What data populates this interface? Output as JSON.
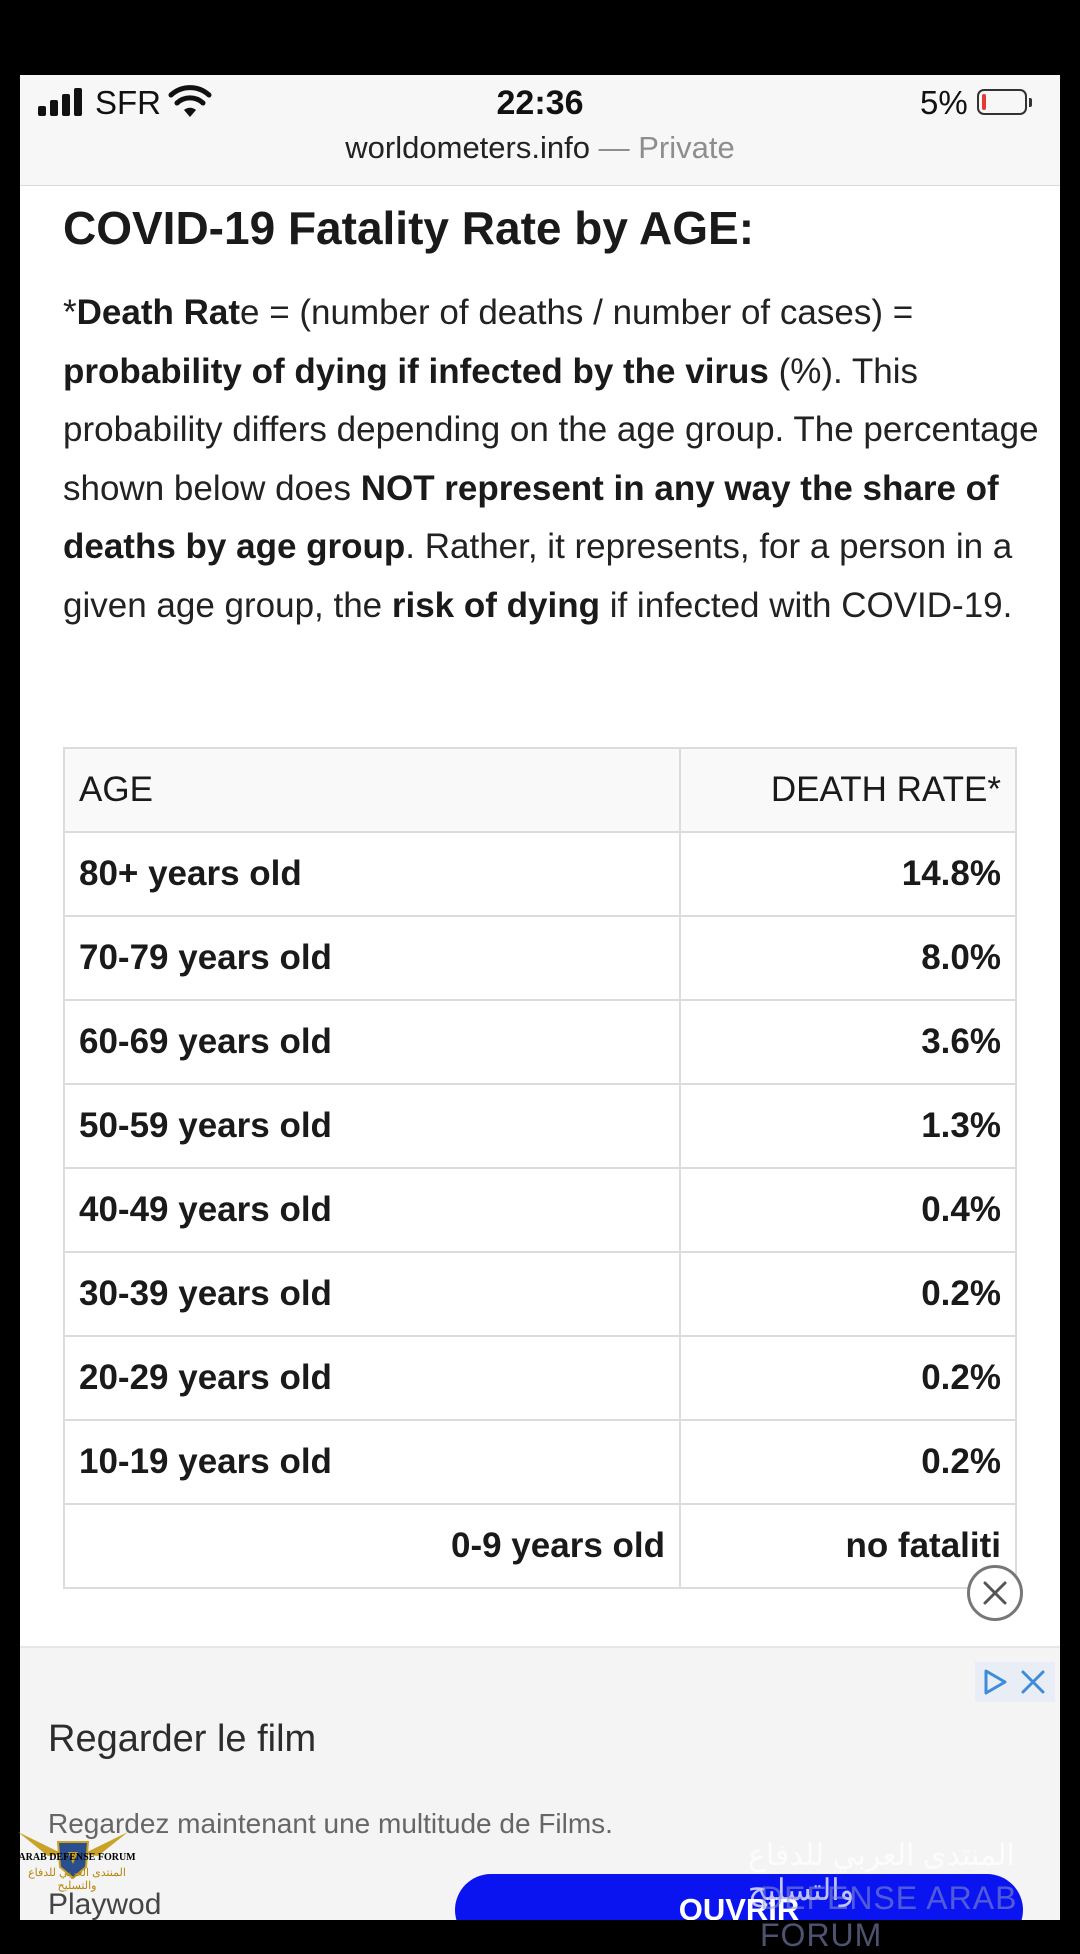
{
  "status": {
    "carrier": "SFR",
    "time": "22:36",
    "battery": "5%",
    "battery_level": 0.05
  },
  "browser": {
    "domain": "worldometers.info",
    "separator": "—",
    "mode": "Private"
  },
  "article": {
    "title": "COVID-19 Fatality Rate by AGE:",
    "desc": {
      "p1": "*",
      "p2": "Death Rat",
      "p3": "e = (number of deaths / number of cases) = ",
      "p4": "probability of dying if infected by the virus",
      "p5": " (%). This probability differs depending on the age group. The percentage shown below does ",
      "p6": "NOT represent in any way the share of deaths by age group",
      "p7": ". Rather, it represents, for a person in a given age group, the ",
      "p8": "risk of dying",
      "p9": " if infected with COVID-19."
    }
  },
  "table": {
    "header": {
      "age": "AGE",
      "rate": "DEATH RATE*"
    },
    "rows": [
      {
        "age": "80+ years old",
        "rate": "14.8%"
      },
      {
        "age": "70-79 years old",
        "rate": "8.0%"
      },
      {
        "age": "60-69 years old",
        "rate": "3.6%"
      },
      {
        "age": "50-59 years old",
        "rate": "1.3%"
      },
      {
        "age": "40-49 years old",
        "rate": "0.4%"
      },
      {
        "age": "30-39 years old",
        "rate": "0.2%"
      },
      {
        "age": "20-29 years old",
        "rate": "0.2%"
      },
      {
        "age": "10-19 years old",
        "rate": "0.2%"
      },
      {
        "age": "0-9 years old",
        "rate": "no fataliti"
      }
    ]
  },
  "ad": {
    "title": "Regarder le film",
    "body": "Regardez maintenant une multitude de Films.",
    "advertiser": "Playwod",
    "cta": "OUVRIR",
    "adchoices_icons": [
      "adchoices-play-icon",
      "adchoices-close-icon"
    ],
    "dismiss_icon": "close-circle-icon",
    "cta_color": "#0a14f0"
  },
  "watermark": {
    "en_small": "ARAB DEFENSE FORUM",
    "ar_small": "المنتدى العربي للدفاع والتسليح",
    "ar_large": "المنتدى العربي للدفاع والتسليح",
    "en_large": "DEFENSE ARAB FORUM"
  }
}
